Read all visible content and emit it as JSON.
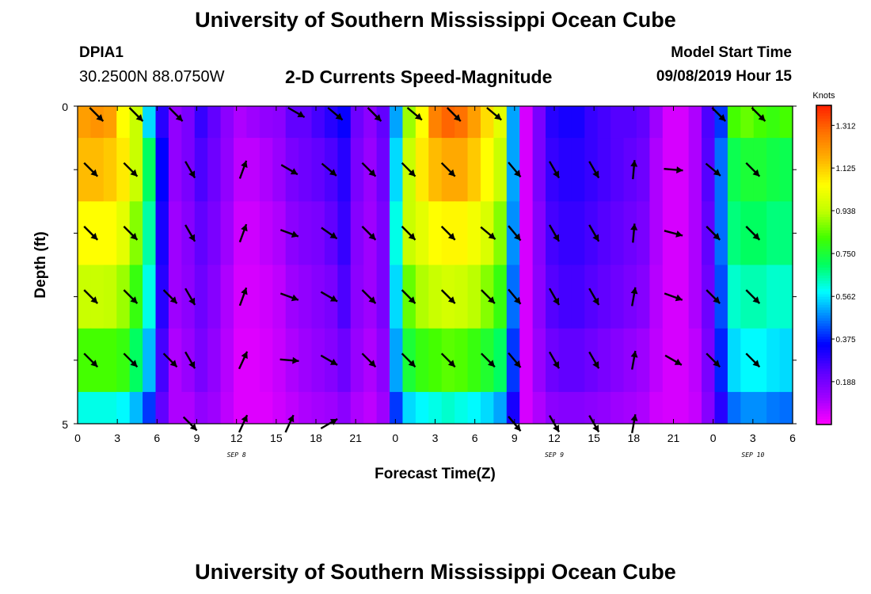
{
  "header": {
    "title": "University of Southern Mississippi Ocean Cube",
    "station_id": "DPIA1",
    "coords": "30.2500N 88.0750W",
    "plot_title": "2-D Currents Speed-Magnitude",
    "model_label": "Model Start Time",
    "model_time": "09/08/2019 Hour 15"
  },
  "footer": {
    "title": "University of Southern Mississippi Ocean Cube"
  },
  "chart_data": {
    "type": "heatmap",
    "xlabel": "Forecast Time(Z)",
    "ylabel": "Depth (ft)",
    "x_tick_labels": [
      "0",
      "3",
      "6",
      "9",
      "12",
      "15",
      "18",
      "21",
      "0",
      "3",
      "6",
      "9",
      "12",
      "15",
      "18",
      "21",
      "0",
      "3",
      "6"
    ],
    "x_range_hours": [
      0,
      54
    ],
    "day_labels": [
      {
        "label": "SEP 8",
        "hour": 12
      },
      {
        "label": "SEP 9",
        "hour": 36
      },
      {
        "label": "SEP 10",
        "hour": 51
      }
    ],
    "y_tick_labels": [
      "0",
      "5"
    ],
    "ylim": [
      0,
      5
    ],
    "colorbar": {
      "unit": "Knots",
      "min": 0.0,
      "max": 1.4,
      "tick_labels": [
        "1.312",
        "1.125",
        "0.938",
        "0.750",
        "0.562",
        "0.375",
        "0.188"
      ],
      "colors": [
        "#ff00ff",
        "#a000ff",
        "#5a00ff",
        "#0000ff",
        "#0080ff",
        "#00ffff",
        "#00ff60",
        "#40ff00",
        "#c0ff00",
        "#ffff00",
        "#ffb000",
        "#ff7000",
        "#ff2000"
      ]
    },
    "depth_layers": 5,
    "speed_by_layer": [
      [
        1.2,
        1.22,
        1.2,
        1.05,
        0.95,
        0.55,
        0.3,
        0.14,
        0.18,
        0.28,
        0.22,
        0.15,
        0.1,
        0.12,
        0.14,
        0.15,
        0.22,
        0.22,
        0.26,
        0.3,
        0.34,
        0.2,
        0.15,
        0.22,
        0.5,
        0.9,
        1.05,
        1.25,
        1.3,
        1.28,
        1.2,
        1.1,
        1.0,
        0.5,
        0.05,
        0.18,
        0.3,
        0.32,
        0.32,
        0.28,
        0.26,
        0.24,
        0.24,
        0.22,
        0.12,
        0.05,
        0.05,
        0.1,
        0.25,
        0.4,
        0.82,
        0.85,
        0.82,
        0.8,
        0.82
      ],
      [
        1.15,
        1.15,
        1.13,
        1.08,
        0.95,
        0.7,
        0.35,
        0.14,
        0.18,
        0.25,
        0.2,
        0.14,
        0.08,
        0.08,
        0.1,
        0.13,
        0.18,
        0.2,
        0.22,
        0.25,
        0.3,
        0.18,
        0.13,
        0.2,
        0.55,
        0.95,
        1.08,
        1.15,
        1.18,
        1.18,
        1.13,
        1.05,
        0.95,
        0.5,
        0.05,
        0.18,
        0.28,
        0.3,
        0.3,
        0.28,
        0.26,
        0.24,
        0.22,
        0.2,
        0.1,
        0.05,
        0.05,
        0.1,
        0.24,
        0.45,
        0.72,
        0.75,
        0.75,
        0.73,
        0.72
      ],
      [
        1.05,
        1.05,
        1.05,
        1.0,
        0.88,
        0.65,
        0.32,
        0.12,
        0.16,
        0.22,
        0.18,
        0.12,
        0.06,
        0.06,
        0.08,
        0.1,
        0.15,
        0.17,
        0.18,
        0.22,
        0.28,
        0.16,
        0.12,
        0.18,
        0.6,
        0.95,
        1.0,
        1.05,
        1.06,
        1.06,
        1.03,
        0.98,
        0.88,
        0.48,
        0.05,
        0.16,
        0.26,
        0.28,
        0.28,
        0.26,
        0.24,
        0.22,
        0.2,
        0.18,
        0.1,
        0.05,
        0.05,
        0.1,
        0.22,
        0.45,
        0.68,
        0.7,
        0.7,
        0.68,
        0.68
      ],
      [
        0.95,
        0.95,
        0.94,
        0.9,
        0.8,
        0.6,
        0.3,
        0.12,
        0.15,
        0.2,
        0.16,
        0.1,
        0.05,
        0.05,
        0.06,
        0.08,
        0.12,
        0.14,
        0.16,
        0.18,
        0.25,
        0.15,
        0.12,
        0.18,
        0.55,
        0.85,
        0.92,
        0.95,
        0.97,
        0.96,
        0.93,
        0.88,
        0.8,
        0.45,
        0.05,
        0.15,
        0.24,
        0.26,
        0.26,
        0.24,
        0.22,
        0.2,
        0.18,
        0.16,
        0.09,
        0.05,
        0.05,
        0.1,
        0.2,
        0.42,
        0.62,
        0.64,
        0.64,
        0.62,
        0.62
      ],
      [
        0.82,
        0.82,
        0.82,
        0.8,
        0.7,
        0.52,
        0.26,
        0.1,
        0.13,
        0.18,
        0.14,
        0.09,
        0.04,
        0.04,
        0.05,
        0.07,
        0.1,
        0.12,
        0.14,
        0.16,
        0.2,
        0.13,
        0.1,
        0.15,
        0.5,
        0.75,
        0.8,
        0.82,
        0.84,
        0.83,
        0.8,
        0.76,
        0.7,
        0.4,
        0.05,
        0.13,
        0.2,
        0.22,
        0.22,
        0.2,
        0.18,
        0.16,
        0.14,
        0.12,
        0.08,
        0.05,
        0.05,
        0.08,
        0.18,
        0.38,
        0.55,
        0.58,
        0.58,
        0.56,
        0.55
      ],
      [
        0.6,
        0.6,
        0.6,
        0.58,
        0.52,
        0.4,
        0.22,
        0.1,
        0.1,
        0.14,
        0.12,
        0.08,
        0.04,
        0.04,
        0.04,
        0.06,
        0.08,
        0.1,
        0.11,
        0.12,
        0.15,
        0.1,
        0.08,
        0.12,
        0.4,
        0.55,
        0.58,
        0.6,
        0.62,
        0.6,
        0.58,
        0.55,
        0.5,
        0.32,
        0.05,
        0.1,
        0.15,
        0.16,
        0.16,
        0.15,
        0.14,
        0.12,
        0.11,
        0.1,
        0.06,
        0.05,
        0.05,
        0.07,
        0.16,
        0.3,
        0.45,
        0.48,
        0.48,
        0.46,
        0.45
      ]
    ],
    "vector_hours": [
      1,
      4,
      7,
      8.5,
      12.5,
      16,
      19,
      22,
      25,
      28,
      31,
      33,
      36,
      39,
      42,
      45,
      48,
      51
    ],
    "vector_depths": [
      0,
      1,
      2,
      3,
      4,
      5
    ],
    "vectors_deg_by_layer": [
      [
        135,
        135,
        135,
        null,
        null,
        120,
        130,
        135,
        130,
        135,
        130,
        null,
        null,
        null,
        null,
        null,
        135,
        135
      ],
      [
        135,
        135,
        null,
        150,
        20,
        120,
        130,
        135,
        135,
        135,
        null,
        140,
        150,
        150,
        5,
        95,
        130,
        135
      ],
      [
        135,
        135,
        null,
        150,
        20,
        110,
        125,
        135,
        135,
        135,
        130,
        140,
        150,
        150,
        5,
        105,
        135,
        135
      ],
      [
        135,
        135,
        135,
        150,
        20,
        110,
        120,
        135,
        135,
        135,
        135,
        140,
        150,
        150,
        10,
        110,
        135,
        135
      ],
      [
        135,
        135,
        135,
        150,
        25,
        95,
        120,
        135,
        135,
        135,
        135,
        140,
        150,
        150,
        10,
        120,
        135,
        135
      ],
      [
        null,
        null,
        null,
        135,
        25,
        25,
        60,
        null,
        null,
        null,
        null,
        140,
        150,
        150,
        10,
        null,
        null,
        null
      ]
    ]
  }
}
